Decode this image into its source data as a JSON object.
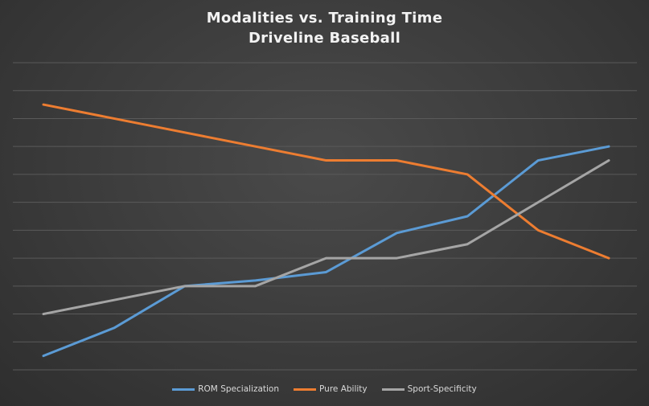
{
  "chart_data": {
    "type": "line",
    "title": "Modalities vs. Training Time",
    "subtitle": "Driveline Baseball",
    "xlabel": "",
    "ylabel": "",
    "grid": true,
    "legend_position": "bottom",
    "axis_labels_shown": false,
    "x": [
      1,
      2,
      3,
      4,
      5,
      6,
      7,
      8,
      9
    ],
    "ylim": [
      0,
      11
    ],
    "series": [
      {
        "name": "ROM Specialization",
        "color": "#5b9bd5",
        "values": [
          0.5,
          1.5,
          3.0,
          3.2,
          3.5,
          4.9,
          5.5,
          7.5,
          8.0
        ]
      },
      {
        "name": "Pure Ability",
        "color": "#ed7d31",
        "values": [
          9.5,
          9.0,
          8.5,
          8.0,
          7.5,
          7.5,
          7.0,
          5.0,
          4.0
        ]
      },
      {
        "name": "Sport-Specificity",
        "color": "#a5a5a5",
        "values": [
          2.0,
          2.5,
          3.0,
          3.0,
          4.0,
          4.0,
          4.5,
          6.0,
          7.5
        ]
      }
    ]
  }
}
